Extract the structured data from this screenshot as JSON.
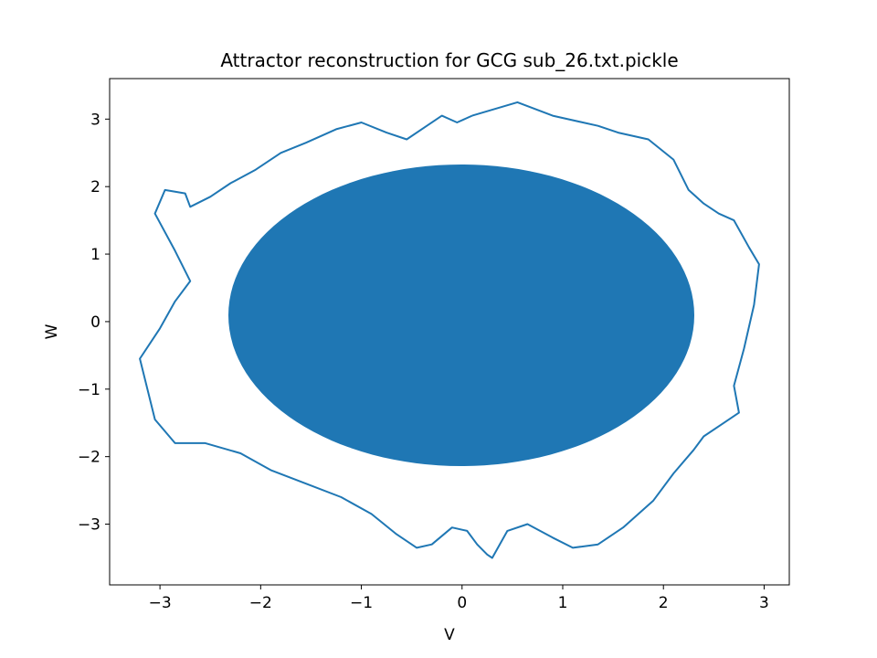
{
  "chart_data": {
    "type": "line",
    "title": "Attractor reconstruction for GCG sub_26.txt.pickle",
    "xlabel": "V",
    "ylabel": "W",
    "xlim": [
      -3.5,
      3.25
    ],
    "ylim": [
      -3.9,
      3.6
    ],
    "xticks": [
      -3,
      -2,
      -1,
      0,
      1,
      2,
      3
    ],
    "yticks": [
      -3,
      -2,
      -1,
      0,
      1,
      2,
      3
    ],
    "grid": false,
    "series": [
      {
        "color": "#1f77b4",
        "x": [
          0.1,
          0.55,
          0.9,
          1.2,
          1.35,
          1.55,
          1.85,
          2.1,
          2.25,
          2.4,
          2.55,
          2.7,
          2.85,
          2.95,
          2.9,
          2.8,
          2.7,
          2.75,
          2.6,
          2.4,
          2.3,
          2.1,
          1.9,
          1.6,
          1.35,
          1.1,
          0.9,
          0.65,
          0.45,
          0.3,
          0.25,
          0.15,
          0.05,
          -0.1,
          -0.3,
          -0.45,
          -0.65,
          -0.9,
          -1.2,
          -1.55,
          -1.9,
          -2.2,
          -2.55,
          -2.85,
          -3.05,
          -3.2,
          -3.0,
          -2.85,
          -2.7,
          -2.85,
          -3.05,
          -2.95,
          -2.75,
          -2.7,
          -2.5,
          -2.3,
          -2.05,
          -1.8,
          -1.55,
          -1.25,
          -1.0,
          -0.75,
          -0.55,
          -0.35,
          -0.2,
          -0.05,
          0.1
        ],
        "y": [
          3.05,
          3.25,
          3.05,
          2.95,
          2.9,
          2.8,
          2.7,
          2.4,
          1.95,
          1.75,
          1.6,
          1.5,
          1.1,
          0.85,
          0.25,
          -0.4,
          -0.95,
          -1.35,
          -1.5,
          -1.7,
          -1.9,
          -2.25,
          -2.65,
          -3.05,
          -3.3,
          -3.35,
          -3.2,
          -3.0,
          -3.1,
          -3.5,
          -3.45,
          -3.3,
          -3.1,
          -3.05,
          -3.3,
          -3.35,
          -3.15,
          -2.85,
          -2.6,
          -2.4,
          -2.2,
          -1.95,
          -1.8,
          -1.8,
          -1.45,
          -0.55,
          -0.1,
          0.3,
          0.6,
          1.05,
          1.6,
          1.95,
          1.9,
          1.7,
          1.85,
          2.05,
          2.25,
          2.5,
          2.65,
          2.85,
          2.95,
          2.8,
          2.7,
          2.9,
          3.05,
          2.95,
          3.05
        ]
      }
    ]
  }
}
